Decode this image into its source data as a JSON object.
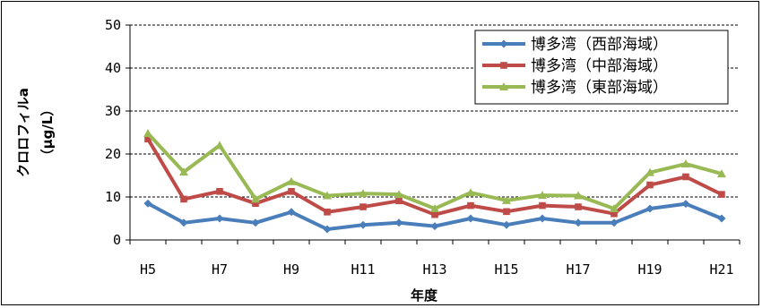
{
  "chart_data": {
    "type": "line",
    "xlabel": "年度",
    "ylabel": "クロロフィルa",
    "ylabel_unit": "（μg/L）",
    "ylim": [
      0,
      50
    ],
    "yticks": [
      0,
      10,
      20,
      30,
      40,
      50
    ],
    "x": [
      "H5",
      "H6",
      "H7",
      "H8",
      "H9",
      "H10",
      "H11",
      "H12",
      "H13",
      "H14",
      "H15",
      "H16",
      "H17",
      "H18",
      "H19",
      "H20",
      "H21"
    ],
    "xtick_labels": [
      "H5",
      "",
      "H7",
      "",
      "H9",
      "",
      "H11",
      "",
      "H13",
      "",
      "H15",
      "",
      "H17",
      "",
      "H19",
      "",
      "H21"
    ],
    "grid": "horizontal dashed",
    "legend_position": "top-right",
    "series": [
      {
        "name": "博多湾（西部海域）",
        "color": "#4a7ebb",
        "marker": "diamond",
        "values": [
          8.5,
          4.0,
          5.0,
          4.0,
          6.5,
          2.5,
          3.5,
          4.0,
          3.2,
          5.0,
          3.5,
          5.0,
          4.0,
          4.0,
          7.3,
          8.4,
          5.0
        ]
      },
      {
        "name": "博多湾（中部海域）",
        "color": "#be4b48",
        "marker": "square",
        "values": [
          23.5,
          9.5,
          11.3,
          8.5,
          11.3,
          6.5,
          7.7,
          9.1,
          5.9,
          8.0,
          6.6,
          8.0,
          7.7,
          6.1,
          12.8,
          14.7,
          10.6
        ]
      },
      {
        "name": "博多湾（東部海域）",
        "color": "#98b954",
        "marker": "triangle",
        "values": [
          24.8,
          15.8,
          22.0,
          9.5,
          13.6,
          10.3,
          10.8,
          10.6,
          7.3,
          11.0,
          9.2,
          10.4,
          10.3,
          7.3,
          15.7,
          17.7,
          15.4
        ]
      }
    ]
  }
}
